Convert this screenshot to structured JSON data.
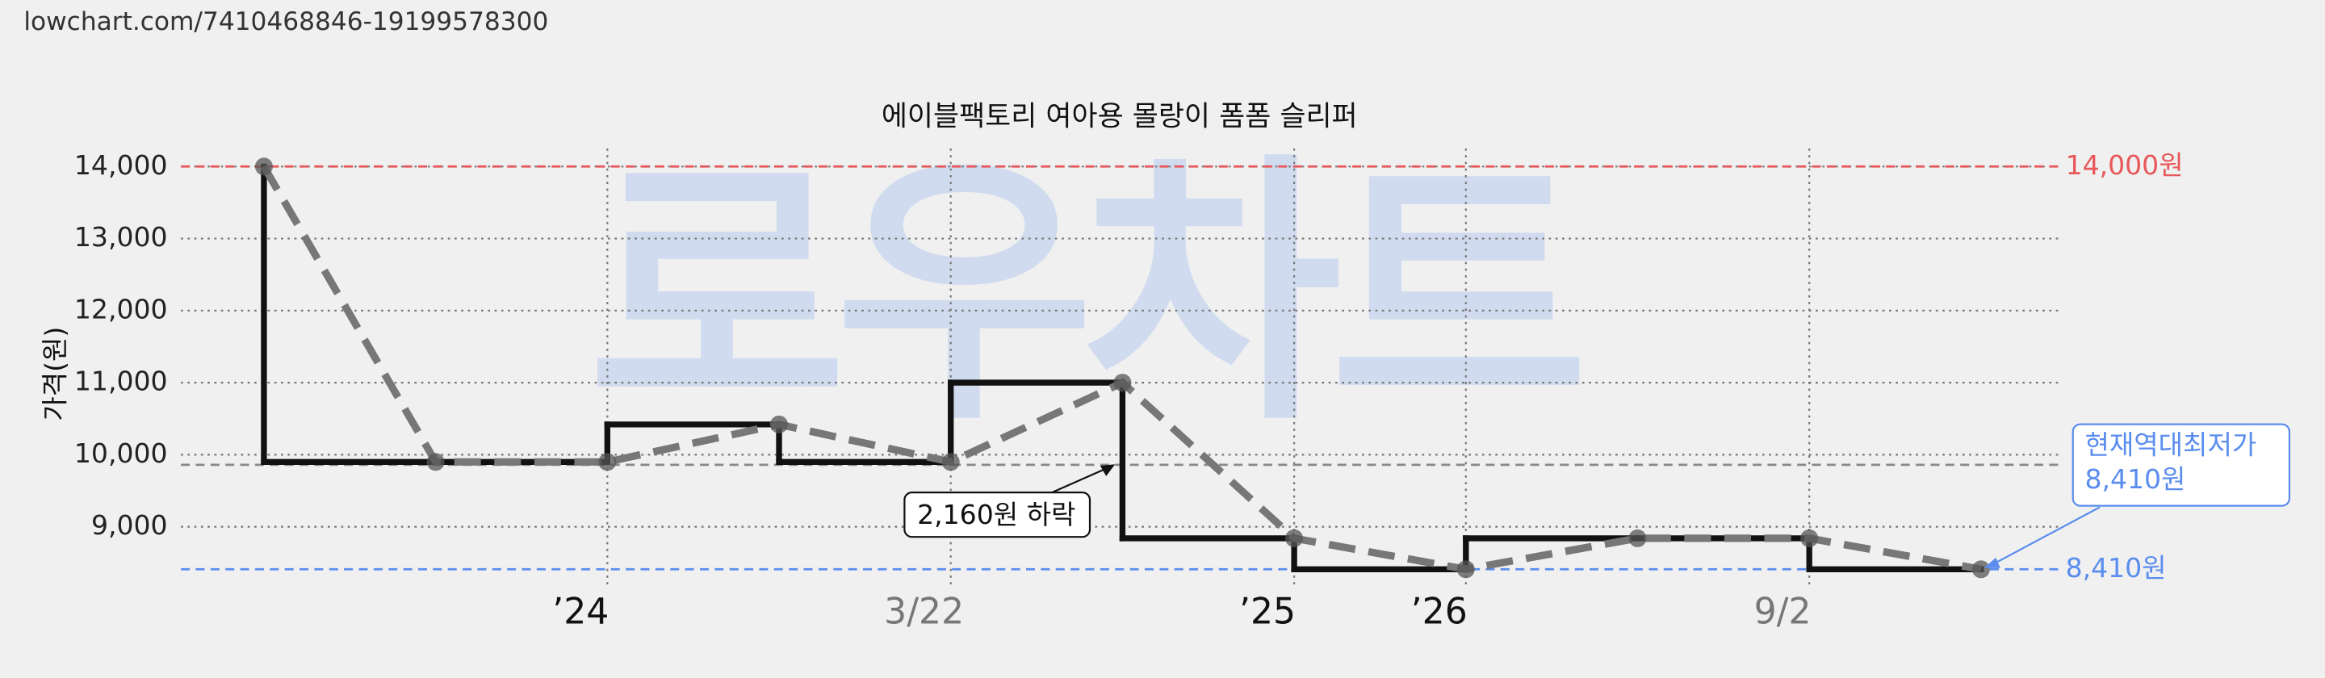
{
  "url": "lowchart.com/7410468846-19199578300",
  "chart_data": {
    "type": "line",
    "title": "에이블팩토리 여아용 몰랑이 폼폼 슬리퍼",
    "y_label": "가격(원)",
    "watermark": "로우차트",
    "categories": [
      null,
      null,
      "’24",
      null,
      "3/22",
      null,
      "’25",
      "’26",
      null,
      "9/2",
      null
    ],
    "series": [
      {
        "name": "가격",
        "color": "#777777",
        "step_color": "#111111",
        "values": [
          14000,
          9900,
          9900,
          10420,
          9900,
          11000,
          8840,
          8410,
          8840,
          8840,
          8410
        ]
      }
    ],
    "ylim": [
      8180,
      14250
    ],
    "yticks": [
      {
        "value": 9000,
        "label": "9,000"
      },
      {
        "value": 10000,
        "label": "10,000"
      },
      {
        "value": 11000,
        "label": "11,000"
      },
      {
        "value": 12000,
        "label": "12,000"
      },
      {
        "value": 13000,
        "label": "13,000"
      },
      {
        "value": 14000,
        "label": "14,000"
      }
    ],
    "grid": true,
    "reference_lines": [
      {
        "value": 14000,
        "label": "14,000원",
        "color": "#e8575a"
      },
      {
        "value": 8410,
        "label": "8,410원",
        "color": "#5b8def"
      },
      {
        "value": 9860,
        "color": "#888888"
      }
    ],
    "annotations": [
      {
        "text": "2,160원 하락"
      },
      {
        "lines": [
          "현재역대최저가",
          "8,410원"
        ],
        "color": "#5b8def"
      }
    ]
  }
}
